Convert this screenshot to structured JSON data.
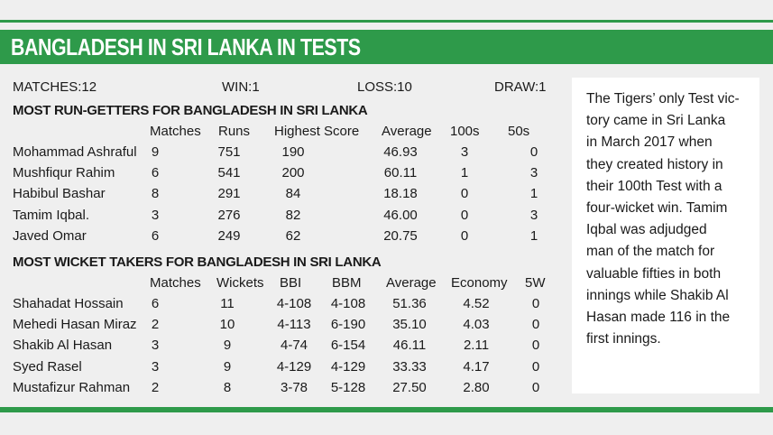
{
  "banner": {
    "title": "BANGLADESH IN SRI LANKA IN TESTS"
  },
  "summary": {
    "matches": "MATCHES:12",
    "win": "WIN:1",
    "loss": "LOSS:10",
    "draw": "DRAW:1"
  },
  "runs": {
    "title": "MOST RUN-GETTERS FOR BANGLADESH IN SRI LANKA",
    "headers": [
      "Matches",
      "Runs",
      "Highest Score",
      "Average",
      "100s",
      "50s"
    ],
    "rows": [
      [
        "Mohammad Ashraful",
        "9",
        "751",
        "190",
        "46.93",
        "3",
        "0"
      ],
      [
        "Mushfiqur Rahim",
        "6",
        "541",
        "200",
        "60.11",
        "1",
        "3"
      ],
      [
        "Habibul Bashar",
        "8",
        "291",
        "84",
        "18.18",
        "0",
        "1"
      ],
      [
        "Tamim Iqbal.",
        "3",
        "276",
        "82",
        "46.00",
        "0",
        "3"
      ],
      [
        "Javed Omar",
        "6",
        "249",
        "62",
        "20.75",
        "0",
        "1"
      ]
    ]
  },
  "wickets": {
    "title": "MOST WICKET TAKERS FOR BANGLADESH IN SRI LANKA",
    "headers": [
      "Matches",
      "Wickets",
      "BBI",
      "BBM",
      "Average",
      "Economy",
      "5W"
    ],
    "rows": [
      [
        "Shahadat Hossain",
        "6",
        "11",
        "4-108",
        "4-108",
        "51.36",
        "4.52",
        "0"
      ],
      [
        "Mehedi Hasan Miraz",
        "2",
        "10",
        "4-113",
        "6-190",
        "35.10",
        "4.03",
        "0"
      ],
      [
        "Shakib Al Hasan",
        "3",
        "9",
        "4-74",
        "6-154",
        "46.11",
        "2.11",
        "0"
      ],
      [
        "Syed Rasel",
        "3",
        "9",
        "4-129",
        "4-129",
        "33.33",
        "4.17",
        "0"
      ],
      [
        "Mustafizur Rahman",
        "2",
        "8",
        "3-78",
        "5-128",
        "27.50",
        "2.80",
        "0"
      ]
    ]
  },
  "sidebar": {
    "lines": [
      "The Tigers’ only Test vic-",
      "tory came in Sri Lanka",
      "in March 2017 when",
      "they created history in",
      "their 100th Test with a",
      "four-wicket win. Tamim",
      "Iqbal was adjudged",
      "man of the match for",
      "valuable fifties in both",
      "innings while Shakib Al",
      "Hasan made 116 in the",
      "first innings."
    ]
  },
  "colors": {
    "accent": "#2e9a4a",
    "background": "#efefef",
    "box": "#ffffff"
  }
}
